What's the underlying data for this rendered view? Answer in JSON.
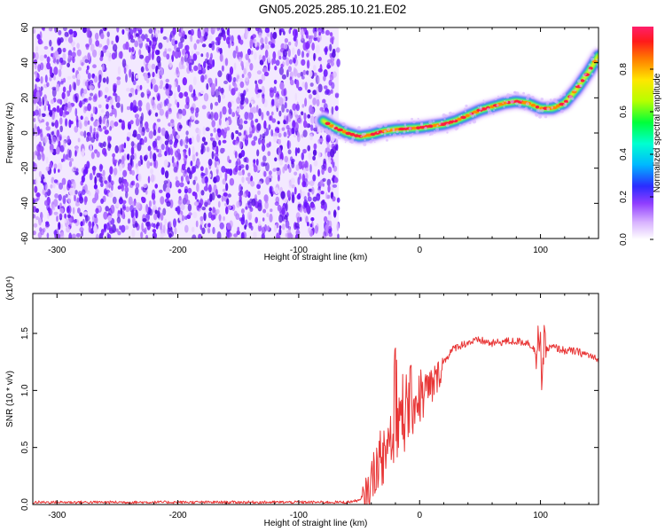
{
  "title": "GN05.2025.285.10.21.E02",
  "chart_data": [
    {
      "type": "heatmap",
      "name": "spectrogram",
      "xlabel": "Height of straight line (km)",
      "ylabel": "Frequency (Hz)",
      "xlim": [
        -320,
        148
      ],
      "ylim": [
        -60,
        60
      ],
      "xticks": [
        -300,
        -200,
        -100,
        0,
        100
      ],
      "xtick_labels": [
        "-300",
        "-200",
        "-100",
        "0",
        "100"
      ],
      "yticks": [
        -60,
        -40,
        -20,
        0,
        20,
        40,
        60
      ],
      "ytick_labels": [
        "-60",
        "-40",
        "-20",
        "0",
        "20",
        "40",
        "60"
      ],
      "noise_region_x": [
        -320,
        -67
      ],
      "ridge": {
        "name": "dominant frequency track",
        "x": [
          -80,
          -70,
          -60,
          -50,
          -40,
          -30,
          -20,
          -10,
          0,
          10,
          20,
          30,
          40,
          50,
          60,
          70,
          80,
          90,
          100,
          110,
          120,
          130,
          140,
          148
        ],
        "y": [
          7,
          3,
          0,
          -2,
          -1,
          1,
          2,
          2.5,
          3,
          4,
          5,
          7,
          10,
          13,
          15,
          17,
          18,
          17,
          14,
          14,
          17,
          25,
          35,
          44
        ]
      },
      "colorbar": {
        "label": "Normalized spectral amplitude",
        "range": [
          0,
          1
        ],
        "ticks": [
          0,
          0.2,
          0.4,
          0.6,
          0.8
        ],
        "tick_labels": [
          "0.0",
          "0.2",
          "0.4",
          "0.6",
          "0.8"
        ]
      }
    },
    {
      "type": "line",
      "name": "snr",
      "xlabel": "Height of straight line (km)",
      "ylabel": "SNR (10 * v/v)",
      "multiplier": "(x10⁴)",
      "xlim": [
        -320,
        148
      ],
      "ylim": [
        0,
        1.85
      ],
      "xticks": [
        -300,
        -200,
        -100,
        0,
        100
      ],
      "xtick_labels": [
        "-300",
        "-200",
        "-100",
        "0",
        "100"
      ],
      "yticks": [
        0,
        0.5,
        1.0,
        1.5
      ],
      "ytick_labels": [
        "0.0",
        "0.5",
        "1.0",
        "1.5"
      ],
      "series": [
        {
          "name": "SNR",
          "color": "#e83535",
          "x": [
            -320,
            -300,
            -250,
            -200,
            -150,
            -100,
            -60,
            -48,
            -42,
            -38,
            -35,
            -30,
            -25,
            -20,
            -15,
            -10,
            -5,
            0,
            5,
            10,
            15,
            20,
            25,
            30,
            40,
            50,
            60,
            70,
            80,
            90,
            95,
            100,
            105,
            110,
            120,
            130,
            140,
            148
          ],
          "y": [
            0.02,
            0.02,
            0.02,
            0.02,
            0.02,
            0.02,
            0.02,
            0.04,
            0.12,
            0.28,
            0.35,
            0.45,
            0.62,
            0.68,
            0.78,
            0.85,
            0.92,
            0.95,
            0.98,
            1.03,
            1.12,
            1.25,
            1.33,
            1.38,
            1.42,
            1.44,
            1.41,
            1.43,
            1.43,
            1.42,
            1.36,
            1.35,
            1.36,
            1.38,
            1.35,
            1.34,
            1.31,
            1.26
          ]
        }
      ]
    }
  ],
  "colors": {
    "line": "#e83535",
    "noise": "#6a14ff",
    "ridge_core": "#ff1e3c"
  }
}
